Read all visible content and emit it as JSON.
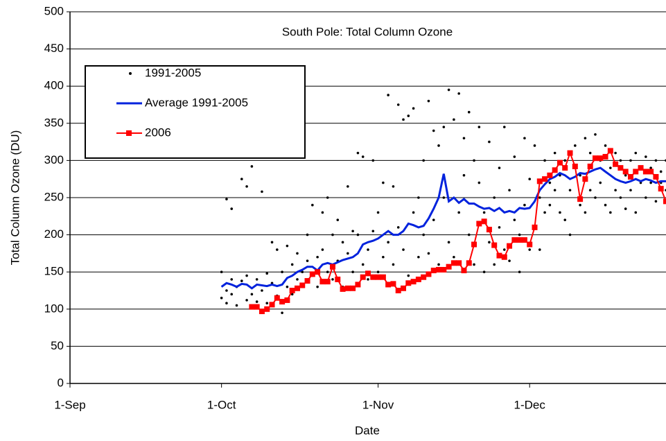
{
  "chart_data": {
    "type": "scatter",
    "title": "South Pole: Total Column Ozone",
    "x_label": "Date",
    "y_label": "Total Column Ozone (DU)",
    "xlim": [
      0,
      118
    ],
    "ylim": [
      0,
      500
    ],
    "xticks": [
      {
        "value": 0,
        "label": "1-Sep"
      },
      {
        "value": 30,
        "label": "1-Oct"
      },
      {
        "value": 61,
        "label": "1-Nov"
      },
      {
        "value": 91,
        "label": "1-Dec"
      }
    ],
    "yticks": [
      0,
      50,
      100,
      150,
      200,
      250,
      300,
      350,
      400,
      450,
      500
    ],
    "grid": true,
    "legend": "upper left",
    "series": [
      {
        "name": "1991-2005",
        "color": "#000000",
        "mode": "markers",
        "x": [
          30,
          30,
          31,
          31,
          31,
          32,
          32,
          32,
          33,
          33,
          34,
          34,
          35,
          35,
          35,
          36,
          36,
          36,
          37,
          37,
          38,
          38,
          39,
          39,
          40,
          40,
          41,
          41,
          42,
          42,
          43,
          43,
          44,
          44,
          45,
          45,
          46,
          46,
          47,
          47,
          48,
          48,
          49,
          49,
          50,
          50,
          51,
          51,
          52,
          52,
          53,
          53,
          54,
          54,
          55,
          55,
          56,
          56,
          57,
          57,
          58,
          58,
          59,
          59,
          60,
          60,
          61,
          61,
          62,
          62,
          63,
          63,
          64,
          64,
          65,
          65,
          66,
          66,
          67,
          67,
          68,
          68,
          69,
          69,
          70,
          70,
          71,
          71,
          72,
          72,
          73,
          73,
          74,
          74,
          75,
          75,
          76,
          76,
          77,
          77,
          78,
          78,
          79,
          79,
          80,
          80,
          81,
          81,
          82,
          82,
          83,
          83,
          84,
          84,
          85,
          85,
          86,
          86,
          87,
          87,
          88,
          88,
          89,
          89,
          90,
          90,
          91,
          91,
          92,
          92,
          93,
          93,
          94,
          94,
          95,
          95,
          96,
          96,
          97,
          97,
          98,
          98,
          99,
          99,
          100,
          100,
          101,
          101,
          102,
          102,
          103,
          103,
          104,
          104,
          105,
          105,
          106,
          106,
          107,
          107,
          108,
          108,
          109,
          109,
          110,
          110,
          111,
          111,
          112,
          112,
          113,
          113,
          114,
          114,
          115,
          115,
          116,
          116,
          117,
          117,
          118,
          118
        ],
        "values": [
          115,
          150,
          108,
          125,
          248,
          140,
          120,
          235,
          105,
          130,
          138,
          275,
          112,
          145,
          265,
          120,
          292,
          102,
          110,
          140,
          125,
          258,
          108,
          148,
          135,
          190,
          118,
          180,
          95,
          150,
          130,
          185,
          120,
          160,
          140,
          175,
          150,
          130,
          165,
          200,
          145,
          240,
          170,
          130,
          180,
          230,
          150,
          250,
          140,
          200,
          165,
          220,
          130,
          190,
          175,
          265,
          150,
          205,
          200,
          310,
          160,
          305,
          180,
          140,
          205,
          300,
          150,
          230,
          170,
          270,
          190,
          388,
          160,
          265,
          210,
          375,
          180,
          355,
          145,
          360,
          230,
          370,
          170,
          250,
          200,
          300,
          175,
          380,
          220,
          340,
          160,
          320,
          250,
          345,
          190,
          395,
          170,
          355,
          230,
          390,
          280,
          330,
          200,
          365,
          160,
          300,
          270,
          345,
          230,
          150,
          190,
          325,
          250,
          160,
          210,
          290,
          180,
          345,
          260,
          165,
          220,
          305,
          150,
          200,
          240,
          330,
          180,
          275,
          210,
          320,
          250,
          180,
          300,
          230,
          270,
          240,
          310,
          260,
          230,
          280,
          300,
          220,
          260,
          200,
          320,
          290,
          280,
          240,
          330,
          230,
          260,
          310,
          335,
          250,
          300,
          270,
          240,
          320,
          290,
          230,
          310,
          260,
          250,
          300,
          280,
          235,
          300,
          260,
          230,
          310,
          270,
          290,
          250,
          305,
          290,
          270,
          245,
          300,
          270,
          285,
          260,
          300
        ]
      },
      {
        "name": "Average 1991-2005",
        "color": "#0022dd",
        "mode": "line",
        "x": [
          30,
          31,
          32,
          33,
          34,
          35,
          36,
          37,
          38,
          39,
          40,
          41,
          42,
          43,
          44,
          45,
          46,
          47,
          48,
          49,
          50,
          51,
          52,
          53,
          54,
          55,
          56,
          57,
          58,
          59,
          60,
          61,
          62,
          63,
          64,
          65,
          66,
          67,
          68,
          69,
          70,
          71,
          72,
          73,
          74,
          75,
          76,
          77,
          78,
          79,
          80,
          81,
          82,
          83,
          84,
          85,
          86,
          87,
          88,
          89,
          90,
          91,
          92,
          93,
          94,
          95,
          96,
          97,
          98,
          99,
          100,
          101,
          102,
          103,
          104,
          105,
          106,
          107,
          108,
          109,
          110,
          111,
          112,
          113,
          114,
          115,
          116,
          117,
          118
        ],
        "values": [
          130,
          135,
          133,
          130,
          134,
          133,
          128,
          133,
          132,
          131,
          133,
          131,
          133,
          142,
          145,
          150,
          153,
          157,
          157,
          152,
          160,
          162,
          160,
          163,
          166,
          168,
          170,
          175,
          187,
          190,
          192,
          195,
          200,
          205,
          200,
          200,
          205,
          215,
          213,
          210,
          212,
          222,
          235,
          250,
          282,
          245,
          250,
          243,
          248,
          242,
          242,
          238,
          235,
          236,
          232,
          236,
          230,
          232,
          230,
          236,
          235,
          236,
          245,
          260,
          268,
          275,
          278,
          283,
          280,
          275,
          278,
          283,
          282,
          285,
          288,
          290,
          285,
          280,
          275,
          272,
          270,
          272,
          275,
          272,
          275,
          273,
          270,
          272,
          272
        ]
      },
      {
        "name": "2006",
        "color": "#ff0000",
        "mode": "line-markers",
        "x": [
          36,
          37,
          38,
          39,
          40,
          41,
          42,
          43,
          44,
          45,
          46,
          47,
          48,
          49,
          50,
          51,
          52,
          53,
          54,
          55,
          56,
          57,
          58,
          59,
          60,
          61,
          62,
          63,
          64,
          65,
          66,
          67,
          68,
          69,
          70,
          71,
          72,
          73,
          74,
          75,
          76,
          77,
          78,
          79,
          80,
          81,
          82,
          83,
          84,
          85,
          86,
          87,
          88,
          89,
          90,
          91,
          92,
          93,
          94,
          95,
          96,
          97,
          98,
          99,
          100,
          101,
          102,
          103,
          104,
          105,
          106,
          107,
          108,
          109,
          110,
          111,
          112,
          113,
          114,
          115,
          116,
          117,
          118
        ],
        "values": [
          103,
          103,
          97,
          100,
          106,
          115,
          110,
          112,
          125,
          128,
          132,
          138,
          147,
          150,
          137,
          137,
          157,
          140,
          127,
          128,
          128,
          133,
          143,
          148,
          143,
          143,
          143,
          133,
          134,
          125,
          128,
          135,
          137,
          140,
          143,
          147,
          152,
          153,
          153,
          157,
          162,
          162,
          152,
          162,
          187,
          215,
          218,
          207,
          186,
          172,
          170,
          185,
          193,
          193,
          193,
          187,
          210,
          272,
          275,
          280,
          287,
          297,
          290,
          310,
          292,
          248,
          275,
          292,
          303,
          303,
          305,
          313,
          295,
          290,
          285,
          278,
          285,
          290,
          285,
          285,
          278,
          262,
          245
        ]
      }
    ]
  }
}
